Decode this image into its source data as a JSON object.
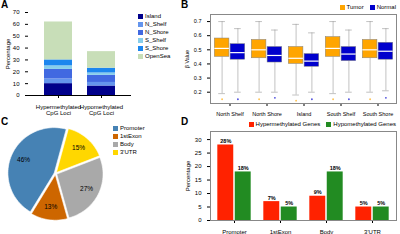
{
  "chart_data": [
    {
      "type": "bar",
      "title": "A",
      "stacked": true,
      "categories": [
        "Hypermethylated\nCpG Loci",
        "Hypomethylated\nCpG Loci"
      ],
      "series": [
        {
          "name": "Island",
          "color": "#00008B",
          "values": [
            10,
            8
          ]
        },
        {
          "name": "N_Shelf",
          "color": "#6495ED",
          "values": [
            4,
            3
          ]
        },
        {
          "name": "N_Shore",
          "color": "#4169E1",
          "values": [
            8,
            6
          ]
        },
        {
          "name": "S_Shelf",
          "color": "#87CEEB",
          "values": [
            3,
            2
          ]
        },
        {
          "name": "S_Shore",
          "color": "#1C86EE",
          "values": [
            5,
            4
          ]
        },
        {
          "name": "OpenSea",
          "color": "#C8DEB8",
          "values": [
            32,
            14
          ]
        }
      ],
      "ylabel": "Percentage",
      "ylim": [
        0,
        70
      ],
      "yticks": [
        0,
        10,
        20,
        30,
        40,
        50,
        60,
        70
      ],
      "legend": "right"
    },
    {
      "type": "box",
      "title": "B",
      "categories": [
        "North Shelf",
        "North Shore",
        "Island",
        "South Shelf",
        "South Shore"
      ],
      "series": [
        {
          "name": "Tumor",
          "color": "#FFA500",
          "q1": [
            0.45,
            0.44,
            0.4,
            0.45,
            0.44
          ],
          "median": [
            0.51,
            0.5,
            0.44,
            0.51,
            0.5
          ],
          "q3": [
            0.58,
            0.57,
            0.52,
            0.59,
            0.57
          ],
          "whislo": [
            0.19,
            0.2,
            0.18,
            0.19,
            0.2
          ],
          "whishi": [
            0.7,
            0.7,
            0.68,
            0.7,
            0.7
          ],
          "fliers": [
            0.15,
            0.15,
            0.14,
            0.15,
            0.15
          ]
        },
        {
          "name": "Normal",
          "color": "#0000CD",
          "q1": [
            0.43,
            0.41,
            0.38,
            0.42,
            0.43
          ],
          "median": [
            0.48,
            0.46,
            0.42,
            0.47,
            0.49
          ],
          "q3": [
            0.54,
            0.52,
            0.47,
            0.52,
            0.55
          ],
          "whislo": [
            0.2,
            0.2,
            0.2,
            0.2,
            0.21
          ],
          "whishi": [
            0.65,
            0.64,
            0.62,
            0.64,
            0.65
          ],
          "fliers": [
            0.15,
            0.16,
            0.15,
            0.15,
            0.16
          ]
        }
      ],
      "ylabel": "β Value",
      "ylim": [
        0.12,
        0.75
      ],
      "yticks": [
        0.2,
        0.3,
        0.4,
        0.5,
        0.6,
        0.7
      ],
      "legend": "upper right"
    },
    {
      "type": "pie",
      "title": "C",
      "categories": [
        "Promoter",
        "1stExon",
        "Body",
        "3'UTR"
      ],
      "values": [
        46,
        13,
        27,
        15
      ],
      "value_labels": [
        "46%",
        "13%",
        "27%",
        "15%"
      ],
      "colors": [
        "#4682B4",
        "#CD6600",
        "#A9A9A9",
        "#FFD700"
      ],
      "data_labels": true,
      "legend": "right"
    },
    {
      "type": "bar",
      "title": "D",
      "categories": [
        "Promoter",
        "1stExon",
        "Body",
        "3'UTR"
      ],
      "series": [
        {
          "name": "Hypermethylated Genes",
          "color": "#FF2200",
          "values": [
            28,
            7,
            9,
            5
          ],
          "value_labels": [
            "28%",
            "7%",
            "9%",
            "5%"
          ]
        },
        {
          "name": "Hypomethylated Genes",
          "color": "#228B22",
          "values": [
            18,
            5,
            18,
            5
          ],
          "value_labels": [
            "18%",
            "5%",
            "18%",
            "5%"
          ]
        }
      ],
      "ylabel": "Percentage",
      "ylim": [
        0,
        33
      ],
      "yticks": [
        0,
        5,
        10,
        15,
        20,
        25,
        30
      ],
      "data_labels": true,
      "legend": "upper right"
    }
  ]
}
